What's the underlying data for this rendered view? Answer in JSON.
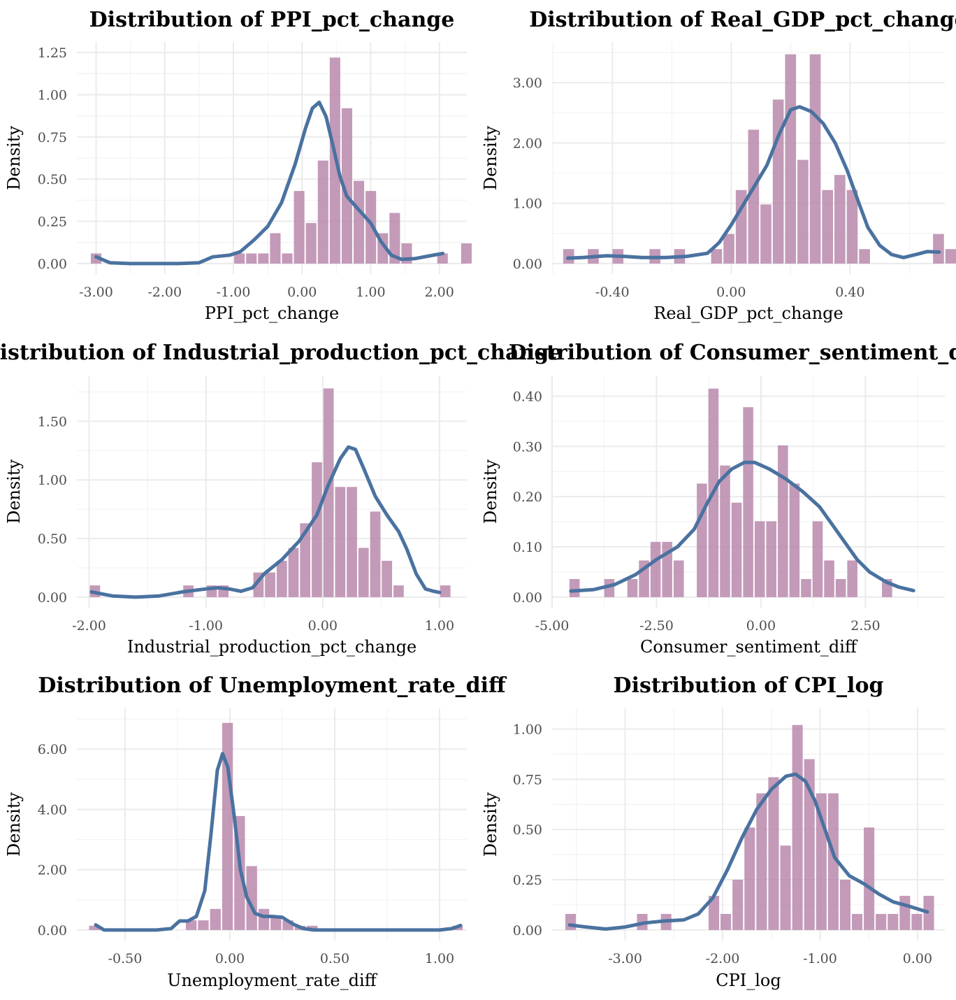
{
  "colors": {
    "bar": "#b888ac",
    "kde": "#4a72a0",
    "grid": "#ebebeb"
  },
  "chart_data": [
    {
      "type": "bar",
      "title": "Distribution of PPI_pct_change",
      "xlabel": "PPI_pct_change",
      "ylabel": "Density",
      "xlim": [
        -3.28,
        2.4
      ],
      "ylim": [
        0,
        1.25
      ],
      "xticks": [
        -3.0,
        -2.0,
        -1.0,
        0.0,
        1.0,
        2.0
      ],
      "xtick_labels": [
        "-3.00",
        "-2.00",
        "-1.00",
        "0.00",
        "1.00",
        "2.00"
      ],
      "yticks": [
        0,
        0.25,
        0.5,
        0.75,
        1.0,
        1.25
      ],
      "ytick_labels": [
        "0.00",
        "0.25",
        "0.50",
        "0.75",
        "1.00",
        "1.25"
      ],
      "bin_start": -3.087,
      "bin_width": 0.174,
      "values": [
        0.06,
        0,
        0,
        0,
        0,
        0,
        0,
        0,
        0,
        0,
        0,
        0,
        0.06,
        0.06,
        0.06,
        0.18,
        0.06,
        0.43,
        0.24,
        0.61,
        1.22,
        0.92,
        0.49,
        0.43,
        0.18,
        0.3,
        0.12,
        0,
        0,
        0.06,
        0,
        0.12
      ],
      "kde": [
        [
          -3.0,
          0.04
        ],
        [
          -2.8,
          0.005
        ],
        [
          -2.5,
          0.0
        ],
        [
          -1.8,
          0.0
        ],
        [
          -1.5,
          0.005
        ],
        [
          -1.3,
          0.04
        ],
        [
          -1.05,
          0.05
        ],
        [
          -0.9,
          0.07
        ],
        [
          -0.7,
          0.14
        ],
        [
          -0.5,
          0.22
        ],
        [
          -0.3,
          0.36
        ],
        [
          -0.1,
          0.59
        ],
        [
          0.05,
          0.8
        ],
        [
          0.15,
          0.92
        ],
        [
          0.25,
          0.955
        ],
        [
          0.35,
          0.87
        ],
        [
          0.45,
          0.7
        ],
        [
          0.55,
          0.52
        ],
        [
          0.65,
          0.4
        ],
        [
          0.8,
          0.33
        ],
        [
          1.0,
          0.24
        ],
        [
          1.15,
          0.13
        ],
        [
          1.3,
          0.05
        ],
        [
          1.45,
          0.025
        ],
        [
          1.65,
          0.03
        ],
        [
          1.85,
          0.045
        ],
        [
          2.05,
          0.06
        ]
      ]
    },
    {
      "type": "bar",
      "title": "Distribution of Real_GDP_pct_change",
      "xlabel": "Real_GDP_pct_change",
      "ylabel": "Density",
      "xlim": [
        -0.603,
        0.719
      ],
      "ylim": [
        0,
        3.5
      ],
      "xticks": [
        -0.4,
        0.0,
        0.4
      ],
      "xtick_labels": [
        "-0.40",
        "0.00",
        "0.40"
      ],
      "yticks": [
        0,
        1.0,
        2.0,
        3.0
      ],
      "ytick_labels": [
        "0.00",
        "1.00",
        "2.00",
        "3.00"
      ],
      "bin_start": -0.568,
      "bin_width": 0.0415,
      "values": [
        0.24,
        0,
        0.24,
        0,
        0.24,
        0,
        0,
        0.24,
        0,
        0.24,
        0,
        0,
        0.24,
        0.49,
        1.22,
        2.22,
        0.98,
        2.72,
        3.47,
        1.72,
        3.47,
        1.22,
        1.47,
        1.22,
        0.24,
        0,
        0,
        0,
        0,
        0,
        0.49,
        0.24
      ],
      "kde": [
        [
          -0.55,
          0.09
        ],
        [
          -0.5,
          0.1
        ],
        [
          -0.42,
          0.13
        ],
        [
          -0.36,
          0.12
        ],
        [
          -0.3,
          0.1
        ],
        [
          -0.22,
          0.1
        ],
        [
          -0.15,
          0.12
        ],
        [
          -0.08,
          0.17
        ],
        [
          -0.04,
          0.35
        ],
        [
          0.0,
          0.64
        ],
        [
          0.04,
          0.97
        ],
        [
          0.08,
          1.3
        ],
        [
          0.12,
          1.63
        ],
        [
          0.16,
          2.13
        ],
        [
          0.2,
          2.55
        ],
        [
          0.23,
          2.6
        ],
        [
          0.27,
          2.52
        ],
        [
          0.31,
          2.32
        ],
        [
          0.35,
          2.0
        ],
        [
          0.39,
          1.55
        ],
        [
          0.43,
          1.0
        ],
        [
          0.46,
          0.6
        ],
        [
          0.5,
          0.3
        ],
        [
          0.54,
          0.15
        ],
        [
          0.58,
          0.1
        ],
        [
          0.63,
          0.16
        ],
        [
          0.66,
          0.2
        ],
        [
          0.7,
          0.19
        ]
      ]
    },
    {
      "type": "bar",
      "title": "Distribution of Industrial_production_pct_change",
      "xlabel": "Industrial_production_pct_change",
      "ylabel": "Density",
      "xlim": [
        -2.105,
        1.234
      ],
      "ylim": [
        0,
        1.8
      ],
      "xticks": [
        -2.0,
        -1.0,
        0.0,
        1.0
      ],
      "xtick_labels": [
        "-2.00",
        "-1.00",
        "0.00",
        "1.00"
      ],
      "yticks": [
        0,
        0.5,
        1.0,
        1.5
      ],
      "ytick_labels": [
        "0.00",
        "0.50",
        "1.00",
        "1.50"
      ],
      "bin_start": -2.0,
      "bin_width": 0.1,
      "values": [
        0.1,
        0,
        0,
        0,
        0,
        0,
        0,
        0,
        0.1,
        0,
        0.1,
        0.1,
        0,
        0,
        0.21,
        0.21,
        0.31,
        0.42,
        0.63,
        1.15,
        1.78,
        0.94,
        0.94,
        0.42,
        0.73,
        0.31,
        0.1,
        0,
        0,
        0,
        0.1
      ],
      "kde": [
        [
          -1.98,
          0.045
        ],
        [
          -1.8,
          0.01
        ],
        [
          -1.6,
          0.0
        ],
        [
          -1.4,
          0.01
        ],
        [
          -1.2,
          0.045
        ],
        [
          -1.0,
          0.07
        ],
        [
          -0.9,
          0.08
        ],
        [
          -0.8,
          0.07
        ],
        [
          -0.7,
          0.05
        ],
        [
          -0.6,
          0.08
        ],
        [
          -0.5,
          0.2
        ],
        [
          -0.35,
          0.32
        ],
        [
          -0.2,
          0.48
        ],
        [
          -0.05,
          0.7
        ],
        [
          0.05,
          0.96
        ],
        [
          0.15,
          1.18
        ],
        [
          0.22,
          1.28
        ],
        [
          0.28,
          1.26
        ],
        [
          0.35,
          1.1
        ],
        [
          0.45,
          0.86
        ],
        [
          0.55,
          0.7
        ],
        [
          0.65,
          0.56
        ],
        [
          0.72,
          0.41
        ],
        [
          0.8,
          0.2
        ],
        [
          0.88,
          0.07
        ],
        [
          0.95,
          0.05
        ],
        [
          1.0,
          0.04
        ]
      ]
    },
    {
      "type": "bar",
      "title": "Distribution of Consumer_sentiment_diff",
      "xlabel": "Consumer_sentiment_diff",
      "ylabel": "Density",
      "xlim": [
        -5.0,
        4.4
      ],
      "ylim": [
        0,
        0.42
      ],
      "xticks": [
        -5.0,
        -2.5,
        0.0,
        2.5
      ],
      "xtick_labels": [
        "-5.00",
        "-2.50",
        "0.00",
        "2.50"
      ],
      "yticks": [
        0,
        0.1,
        0.2,
        0.3,
        0.4
      ],
      "ytick_labels": [
        "0.00",
        "0.10",
        "0.20",
        "0.30",
        "0.40"
      ],
      "bin_start": -4.6,
      "bin_width": 0.277,
      "values": [
        0.036,
        0,
        0,
        0.036,
        0,
        0.036,
        0.073,
        0.11,
        0.11,
        0.073,
        0,
        0.226,
        0.415,
        0.262,
        0.188,
        0.378,
        0.151,
        0.151,
        0.302,
        0.226,
        0.036,
        0.151,
        0.073,
        0.036,
        0.073,
        0,
        0,
        0.036
      ],
      "kde": [
        [
          -4.55,
          0.012
        ],
        [
          -4.0,
          0.015
        ],
        [
          -3.5,
          0.025
        ],
        [
          -3.0,
          0.045
        ],
        [
          -2.5,
          0.075
        ],
        [
          -2.0,
          0.1
        ],
        [
          -1.6,
          0.135
        ],
        [
          -1.3,
          0.185
        ],
        [
          -1.0,
          0.23
        ],
        [
          -0.7,
          0.255
        ],
        [
          -0.4,
          0.268
        ],
        [
          -0.15,
          0.268
        ],
        [
          0.2,
          0.255
        ],
        [
          0.6,
          0.235
        ],
        [
          1.0,
          0.21
        ],
        [
          1.4,
          0.18
        ],
        [
          1.7,
          0.145
        ],
        [
          2.0,
          0.11
        ],
        [
          2.3,
          0.075
        ],
        [
          2.6,
          0.05
        ],
        [
          3.0,
          0.03
        ],
        [
          3.3,
          0.02
        ],
        [
          3.65,
          0.013
        ]
      ]
    },
    {
      "type": "bar",
      "title": "Distribution of Unemployment_rate_diff",
      "xlabel": "Unemployment_rate_diff",
      "ylabel": "Density",
      "xlim": [
        -0.73,
        1.13
      ],
      "ylim": [
        0,
        7.0
      ],
      "xticks": [
        -0.5,
        0.0,
        0.5,
        1.0
      ],
      "xtick_labels": [
        "-0.50",
        "0.00",
        "0.50",
        "1.00"
      ],
      "yticks": [
        0,
        2.0,
        4.0,
        6.0
      ],
      "ytick_labels": [
        "0.00",
        "2.00",
        "4.00",
        "6.00"
      ],
      "bin_start": -0.675,
      "bin_width": 0.0577,
      "values": [
        0.14,
        0,
        0,
        0,
        0,
        0,
        0,
        0,
        0.32,
        0.32,
        0.7,
        6.87,
        3.78,
        2.12,
        0.7,
        0.43,
        0.32,
        0.14,
        0.14,
        0,
        0,
        0,
        0,
        0,
        0,
        0,
        0,
        0,
        0,
        0,
        0.14
      ],
      "kde": [
        [
          -0.64,
          0.17
        ],
        [
          -0.6,
          0.0
        ],
        [
          -0.5,
          0.0
        ],
        [
          -0.35,
          0.0
        ],
        [
          -0.28,
          0.05
        ],
        [
          -0.24,
          0.3
        ],
        [
          -0.2,
          0.3
        ],
        [
          -0.16,
          0.45
        ],
        [
          -0.12,
          1.3
        ],
        [
          -0.09,
          3.2
        ],
        [
          -0.06,
          5.3
        ],
        [
          -0.035,
          5.85
        ],
        [
          -0.01,
          5.4
        ],
        [
          0.02,
          3.8
        ],
        [
          0.05,
          2.0
        ],
        [
          0.08,
          1.1
        ],
        [
          0.12,
          0.55
        ],
        [
          0.16,
          0.45
        ],
        [
          0.2,
          0.45
        ],
        [
          0.25,
          0.42
        ],
        [
          0.3,
          0.2
        ],
        [
          0.35,
          0.05
        ],
        [
          0.4,
          0.0
        ],
        [
          0.7,
          0.0
        ],
        [
          1.0,
          0.0
        ],
        [
          1.06,
          0.05
        ],
        [
          1.1,
          0.15
        ]
      ]
    },
    {
      "type": "bar",
      "title": "Distribution of CPI_log",
      "xlabel": "CPI_log",
      "ylabel": "Density",
      "xlim": [
        -3.75,
        0.28
      ],
      "ylim": [
        0,
        1.05
      ],
      "xticks": [
        -3.0,
        -2.0,
        -1.0,
        0.0
      ],
      "xtick_labels": [
        "-3.00",
        "-2.00",
        "-1.00",
        "0.00"
      ],
      "yticks": [
        0,
        0.25,
        0.5,
        0.75,
        1.0
      ],
      "ytick_labels": [
        "0.00",
        "0.25",
        "0.50",
        "0.75",
        "1.00"
      ],
      "bin_start": -3.621,
      "bin_width": 0.1225,
      "values": [
        0.08,
        0,
        0,
        0,
        0,
        0,
        0.08,
        0,
        0.08,
        0,
        0,
        0,
        0.17,
        0.08,
        0.25,
        0.51,
        0.68,
        0.76,
        0.42,
        1.02,
        0.85,
        0.68,
        0.68,
        0.25,
        0.08,
        0.51,
        0.08,
        0.08,
        0.17,
        0.08,
        0.17
      ],
      "kde": [
        [
          -3.57,
          0.025
        ],
        [
          -3.4,
          0.015
        ],
        [
          -3.2,
          0.005
        ],
        [
          -3.0,
          0.015
        ],
        [
          -2.8,
          0.035
        ],
        [
          -2.6,
          0.045
        ],
        [
          -2.4,
          0.05
        ],
        [
          -2.25,
          0.08
        ],
        [
          -2.1,
          0.16
        ],
        [
          -1.95,
          0.3
        ],
        [
          -1.8,
          0.46
        ],
        [
          -1.65,
          0.6
        ],
        [
          -1.5,
          0.7
        ],
        [
          -1.35,
          0.765
        ],
        [
          -1.25,
          0.775
        ],
        [
          -1.15,
          0.74
        ],
        [
          -1.05,
          0.64
        ],
        [
          -0.95,
          0.5
        ],
        [
          -0.85,
          0.36
        ],
        [
          -0.7,
          0.27
        ],
        [
          -0.55,
          0.23
        ],
        [
          -0.4,
          0.18
        ],
        [
          -0.25,
          0.14
        ],
        [
          -0.1,
          0.12
        ],
        [
          0.1,
          0.09
        ]
      ]
    }
  ]
}
